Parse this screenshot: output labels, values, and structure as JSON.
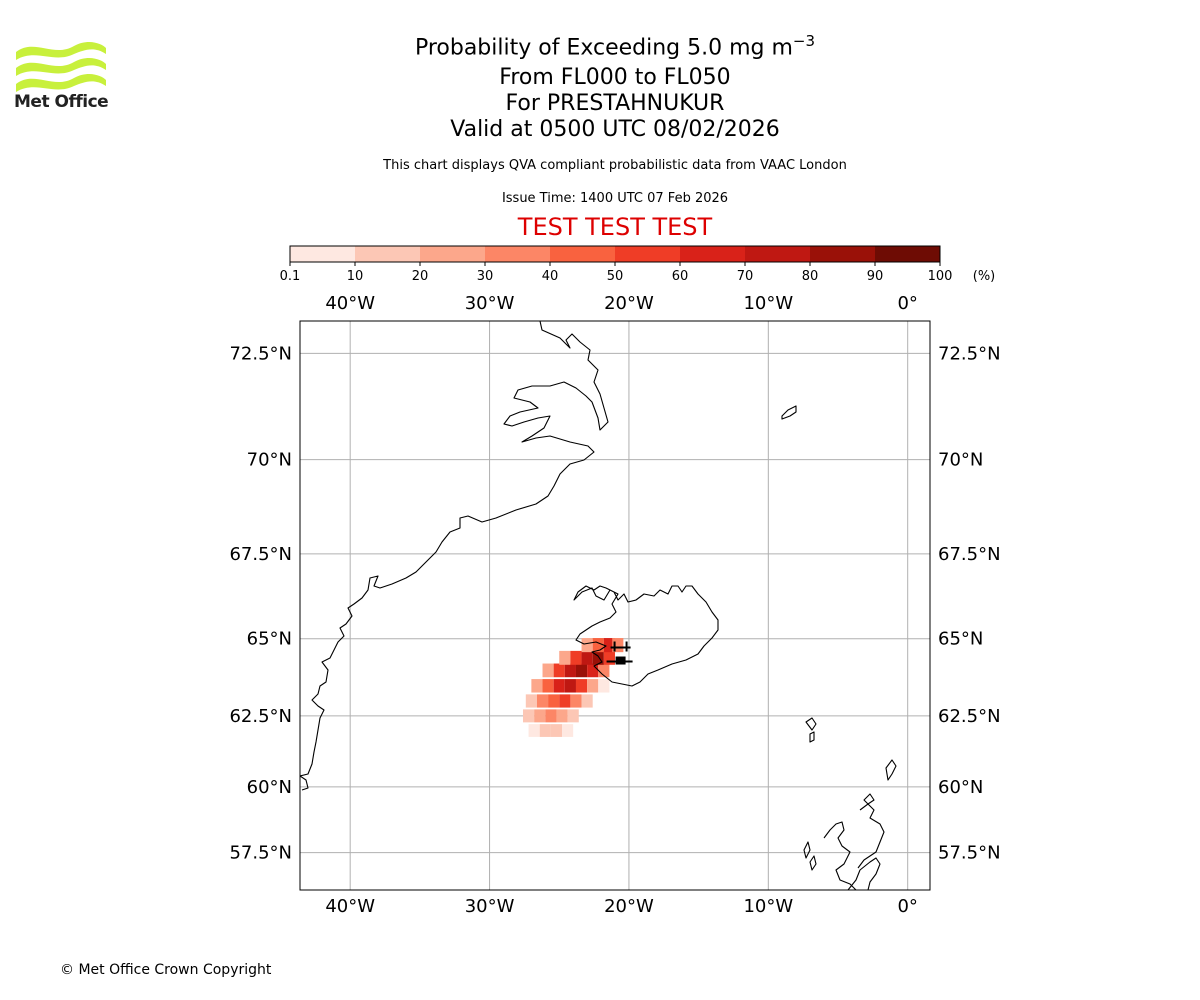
{
  "header": {
    "logo_text": "Met Office",
    "title_line1": "Probability of Exceeding 5.0 mg m",
    "title_line1_sup": "−3",
    "title_line2": "From FL000 to FL050",
    "title_line3": "For PRESTAHNUKUR",
    "title_line4": "Valid at 0500 UTC 08/02/2026",
    "subtitle": "This chart displays QVA compliant probabilistic data from VAAC London",
    "issue_time": "Issue Time: 1400 UTC 07 Feb 2026",
    "test_banner": "TEST TEST TEST"
  },
  "colorbar": {
    "ticks": [
      "0.1",
      "10",
      "20",
      "30",
      "40",
      "50",
      "60",
      "70",
      "80",
      "90",
      "100"
    ],
    "unit_label": "(%)",
    "colors": [
      "#fee8e1",
      "#fcc7b5",
      "#fca78b",
      "#fc8666",
      "#f9623f",
      "#ef3d26",
      "#d92219",
      "#bf1812",
      "#9a1108",
      "#6e0c04"
    ]
  },
  "map": {
    "lon_labels": [
      "40°W",
      "30°W",
      "20°W",
      "10°W",
      "0°"
    ],
    "lon_values": [
      -40,
      -30,
      -20,
      -10,
      0
    ],
    "lat_labels": [
      "72.5°N",
      "70°N",
      "67.5°N",
      "65°N",
      "62.5°N",
      "60°N",
      "57.5°N"
    ],
    "lat_values": [
      72.5,
      70,
      67.5,
      65,
      62.5,
      60,
      57.5
    ],
    "extent": {
      "lon_min": -43.6,
      "lon_max": 1.6,
      "lat_min": 56.0,
      "lat_max": 73.2
    },
    "volcano": {
      "name": "PRESTAHNUKUR",
      "lon": -20.6,
      "lat": 64.6
    },
    "plume_bins": [
      [
        -26.8,
        62.0,
        0
      ],
      [
        -26.0,
        62.0,
        1
      ],
      [
        -25.2,
        62.0,
        1
      ],
      [
        -24.4,
        62.0,
        0
      ],
      [
        -27.2,
        62.5,
        1
      ],
      [
        -26.4,
        62.5,
        2
      ],
      [
        -25.6,
        62.5,
        3
      ],
      [
        -24.8,
        62.5,
        2
      ],
      [
        -24.0,
        62.5,
        1
      ],
      [
        -27.0,
        63.0,
        1
      ],
      [
        -26.2,
        63.0,
        3
      ],
      [
        -25.4,
        63.0,
        4
      ],
      [
        -24.6,
        63.0,
        5
      ],
      [
        -23.8,
        63.0,
        3
      ],
      [
        -23.0,
        63.0,
        1
      ],
      [
        -26.6,
        63.5,
        2
      ],
      [
        -25.8,
        63.5,
        4
      ],
      [
        -25.0,
        63.5,
        6
      ],
      [
        -24.2,
        63.5,
        7
      ],
      [
        -23.4,
        63.5,
        5
      ],
      [
        -22.6,
        63.5,
        2
      ],
      [
        -21.8,
        63.5,
        0
      ],
      [
        -25.8,
        64.0,
        2
      ],
      [
        -25.0,
        64.0,
        5
      ],
      [
        -24.2,
        64.0,
        7
      ],
      [
        -23.4,
        64.0,
        8
      ],
      [
        -22.6,
        64.0,
        6
      ],
      [
        -21.8,
        64.0,
        3
      ],
      [
        -24.6,
        64.4,
        2
      ],
      [
        -23.8,
        64.4,
        5
      ],
      [
        -23.0,
        64.4,
        7
      ],
      [
        -22.2,
        64.4,
        8
      ],
      [
        -21.4,
        64.4,
        5
      ],
      [
        -23.0,
        64.8,
        2
      ],
      [
        -22.2,
        64.8,
        4
      ],
      [
        -21.4,
        64.8,
        6
      ],
      [
        -20.8,
        64.8,
        3
      ]
    ]
  },
  "footer": {
    "copyright": "© Met Office Crown Copyright"
  }
}
